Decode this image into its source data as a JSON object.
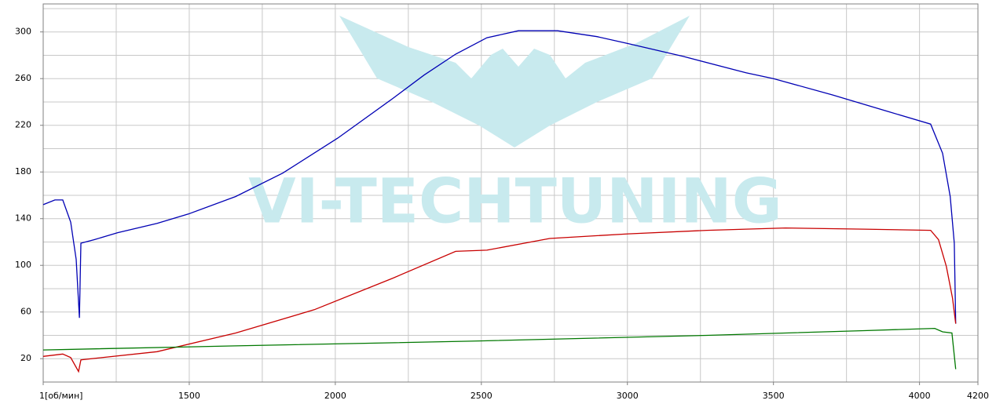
{
  "chart_data": {
    "type": "line",
    "watermark": "VI-TECHTUNING",
    "xlim": [
      1000,
      4200
    ],
    "xticks": [
      {
        "value": 1000,
        "label": "1[об/мин]"
      },
      1500,
      2000,
      2500,
      3000,
      3500,
      4000,
      4200
    ],
    "xgrid": [
      1250,
      1500,
      1750,
      2000,
      2250,
      2500,
      2750,
      3000,
      3250,
      3500,
      3750,
      4000
    ],
    "ylim": [
      0,
      324
    ],
    "yticks": [
      20,
      60,
      100,
      140,
      180,
      220,
      260,
      300
    ],
    "ygrid": [
      20,
      40,
      60,
      80,
      100,
      120,
      140,
      160,
      180,
      200,
      220,
      240,
      260,
      280,
      300,
      320
    ],
    "grid": true,
    "series": [
      {
        "color": "#0000b4",
        "x": [
          1000,
          1040,
          1067,
          1094,
          1113,
          1124,
          1129,
          1175,
          1255,
          1390,
          1497,
          1659,
          1820,
          2008,
          2197,
          2304,
          2412,
          2519,
          2627,
          2761,
          2896,
          3003,
          3191,
          3406,
          3500,
          3702,
          3890,
          4038,
          4079,
          4105,
          4119,
          4124
        ],
        "values": [
          152,
          156,
          156,
          137,
          105,
          55,
          119,
          122,
          128,
          136,
          144,
          159,
          179,
          209,
          243,
          263,
          281,
          295,
          301,
          301,
          296,
          290,
          279,
          265,
          260,
          246,
          232,
          221,
          196,
          159,
          119,
          50
        ]
      },
      {
        "color": "#c80000",
        "x": [
          1000,
          1067,
          1094,
          1121,
          1129,
          1390,
          1659,
          1928,
          2197,
          2412,
          2519,
          2734,
          3003,
          3272,
          3541,
          3810,
          4038,
          4065,
          4092,
          4113,
          4124
        ],
        "values": [
          22,
          24,
          21,
          9,
          19,
          26,
          42,
          62,
          89,
          112,
          113,
          123,
          127,
          130,
          132,
          131,
          130,
          122,
          99,
          72,
          50
        ]
      },
      {
        "color": "#007800",
        "x": [
          1000,
          1659,
          2465,
          3272,
          3810,
          4052,
          4079,
          4111,
          4124
        ],
        "values": [
          27.5,
          31,
          35,
          40,
          44,
          46,
          43,
          42,
          11
        ]
      }
    ]
  }
}
